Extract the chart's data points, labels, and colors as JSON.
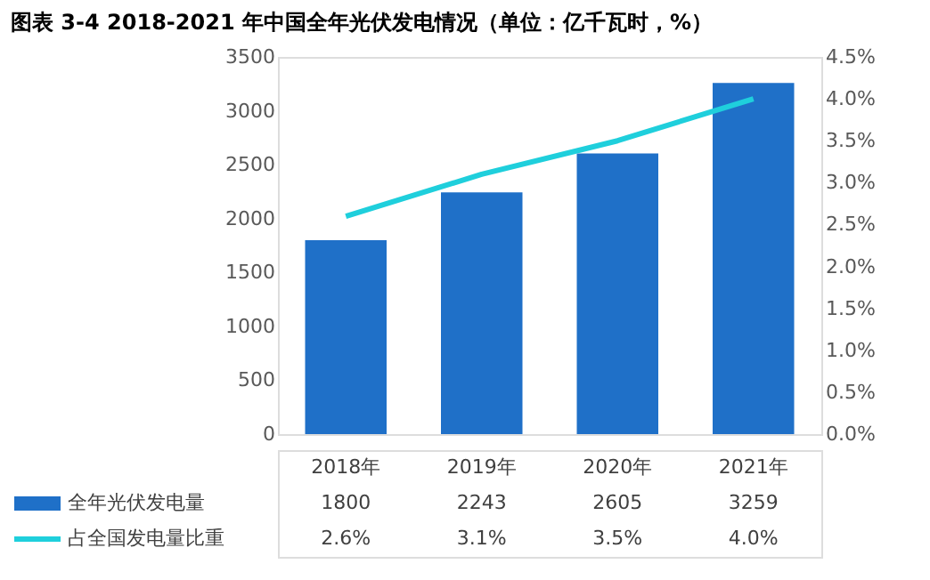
{
  "chart_data": {
    "type": "bar",
    "title": "图表 3-4 2018-2021 年中国全年光伏发电情况（单位：亿千瓦时，%）",
    "categories": [
      "2018年",
      "2019年",
      "2020年",
      "2021年"
    ],
    "series": [
      {
        "name": "全年光伏发电量",
        "color": "#1f70c8",
        "values": [
          1800,
          2243,
          2605,
          3259
        ],
        "value_labels": [
          "1800",
          "2243",
          "2605",
          "3259"
        ]
      },
      {
        "name": "占全国发电量比重",
        "type": "line",
        "axis": "y2",
        "color": "#1fcfdc",
        "values": [
          2.6,
          3.1,
          3.5,
          4.0
        ],
        "value_labels": [
          "2.6%",
          "3.1%",
          "3.5%",
          "4.0%"
        ]
      }
    ],
    "ylim": [
      0,
      3500
    ],
    "yticks": [
      0,
      500,
      1000,
      1500,
      2000,
      2500,
      3000,
      3500
    ],
    "y2lim": [
      0,
      4.5
    ],
    "y2ticks": [
      {
        "value": 0,
        "label": "0.0%"
      },
      {
        "value": 0.5,
        "label": "0.5%"
      },
      {
        "value": 1,
        "label": "1.0%"
      },
      {
        "value": 1.5,
        "label": "1.5%"
      },
      {
        "value": 2,
        "label": "2.0%"
      },
      {
        "value": 2.5,
        "label": "2.5%"
      },
      {
        "value": 3,
        "label": "3.0%"
      },
      {
        "value": 3.5,
        "label": "3.5%"
      },
      {
        "value": 4,
        "label": "4.0%"
      },
      {
        "value": 4.5,
        "label": "4.5%"
      }
    ],
    "grid": false,
    "legend": "bottom left",
    "marker": "none",
    "line_style": "solid"
  }
}
